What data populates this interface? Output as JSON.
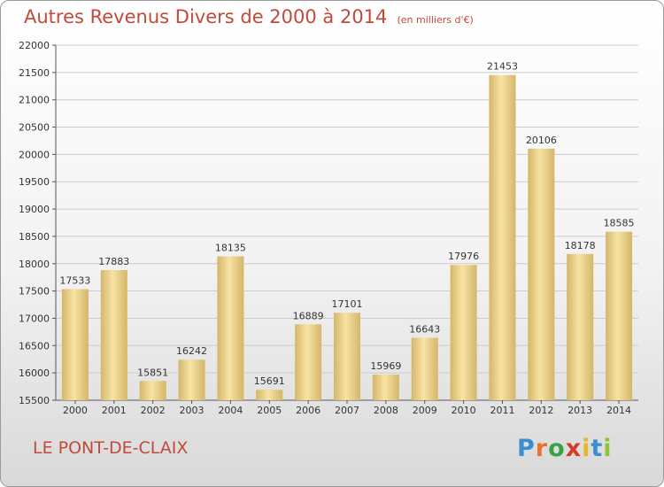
{
  "title": "Autres Revenus Divers de 2000 à 2014",
  "unit_note": "(en milliers d'€)",
  "location": "LE PONT-DE-CLAIX",
  "brand": {
    "name": "Proxiti",
    "letters": [
      "P",
      "r",
      "o",
      "x",
      "i",
      "t",
      "i"
    ],
    "letter_colors": [
      "#3a8fd0",
      "#e8732a",
      "#3aa04a",
      "#d63a2a",
      "#e8b52a",
      "#3a8fd0",
      "#8cc43a"
    ]
  },
  "colors": {
    "bar_light": "#f7e3a3",
    "bar_dark": "#d4b66a",
    "title": "#c24a3a",
    "grid": "#cccccc"
  },
  "chart_data": {
    "type": "bar",
    "categories": [
      "2000",
      "2001",
      "2002",
      "2003",
      "2004",
      "2005",
      "2006",
      "2007",
      "2008",
      "2009",
      "2010",
      "2011",
      "2012",
      "2013",
      "2014"
    ],
    "values": [
      17533,
      17883,
      15851,
      16242,
      18135,
      15691,
      16889,
      17101,
      15969,
      16643,
      17976,
      21453,
      20106,
      18178,
      18585
    ],
    "ylim": [
      15500,
      22000
    ],
    "yticks": [
      15500,
      16000,
      16500,
      17000,
      17500,
      18000,
      18500,
      19000,
      19500,
      20000,
      20500,
      21000,
      21500,
      22000
    ],
    "grid": true,
    "xlabel": "",
    "ylabel": ""
  }
}
